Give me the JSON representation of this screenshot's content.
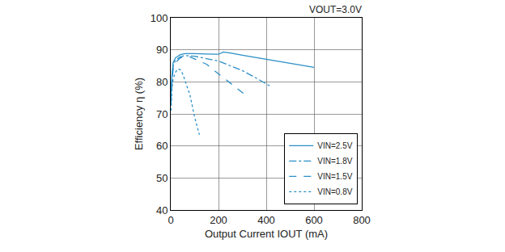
{
  "chart_data": {
    "type": "line",
    "title": "VOUT=3.0V",
    "x_label": "Output Current IOUT (mA)",
    "y_label": "Efficiency η (%)",
    "xlim": [
      0,
      800
    ],
    "xticks": [
      0,
      200,
      400,
      600,
      800
    ],
    "ylim": [
      40,
      100
    ],
    "yticks": [
      40,
      50,
      60,
      70,
      80,
      90,
      100
    ],
    "grid": true,
    "legend": "lower right",
    "series": [
      {
        "name": "VIN=2.5V",
        "color": "#2a8fc7",
        "line_style": "solid",
        "x": [
          1,
          5,
          10,
          20,
          40,
          60,
          100,
          150,
          200,
          220,
          250,
          300,
          400,
          500,
          600
        ],
        "values": [
          75,
          82,
          86,
          87.5,
          88.5,
          88.8,
          88.8,
          88.7,
          88.6,
          89.3,
          89,
          88.3,
          87,
          85.8,
          84.5
        ]
      },
      {
        "name": "VIN=1.8V",
        "color": "#2a8fc7",
        "line_style": "dashdot",
        "x": [
          1,
          5,
          10,
          20,
          40,
          60,
          100,
          150,
          200,
          250,
          300,
          350,
          400,
          420
        ],
        "values": [
          74,
          81,
          85,
          86.8,
          87.8,
          88.2,
          88,
          87.3,
          86.5,
          85,
          83.5,
          81.5,
          79.5,
          78.5
        ]
      },
      {
        "name": "VIN=1.5V",
        "color": "#2a8fc7",
        "line_style": "dash",
        "x": [
          1,
          5,
          10,
          20,
          40,
          60,
          80,
          100,
          150,
          200,
          250,
          300,
          320
        ],
        "values": [
          73,
          80,
          84,
          86,
          87.5,
          87.8,
          87.8,
          87.2,
          85.5,
          82.5,
          79.5,
          76.5,
          75.5
        ]
      },
      {
        "name": "VIN=0.8V",
        "color": "#2a8fc7",
        "line_style": "dot",
        "x": [
          1,
          5,
          10,
          20,
          30,
          40,
          50,
          60,
          80,
          100,
          120
        ],
        "values": [
          71,
          78,
          81,
          83,
          84,
          83.8,
          82.5,
          80.5,
          76,
          69,
          63.5
        ]
      }
    ]
  }
}
